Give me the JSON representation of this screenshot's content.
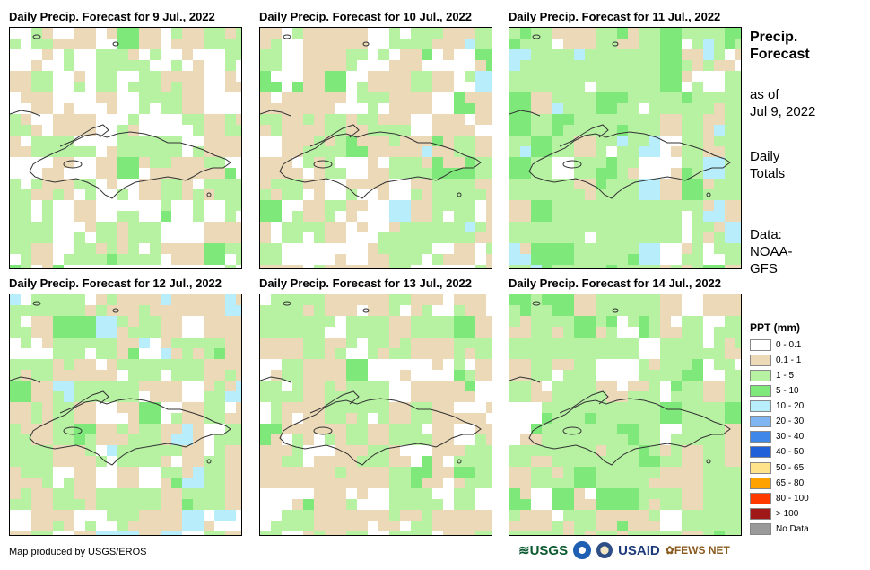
{
  "panels": [
    {
      "title": "Daily Precip. Forecast for 9 Jul., 2022",
      "seed": 3,
      "white": 0.38,
      "tan": 0.3,
      "green": 0.28,
      "dark": 0.04,
      "cyan": 0.0
    },
    {
      "title": "Daily Precip. Forecast for 10 Jul., 2022",
      "seed": 7,
      "white": 0.22,
      "tan": 0.36,
      "green": 0.34,
      "dark": 0.05,
      "cyan": 0.03
    },
    {
      "title": "Daily Precip. Forecast for 11 Jul., 2022",
      "seed": 11,
      "white": 0.08,
      "tan": 0.16,
      "green": 0.55,
      "dark": 0.12,
      "cyan": 0.09
    },
    {
      "title": "Daily Precip. Forecast for 12 Jul., 2022",
      "seed": 19,
      "white": 0.15,
      "tan": 0.38,
      "green": 0.35,
      "dark": 0.05,
      "cyan": 0.07
    },
    {
      "title": "Daily Precip. Forecast for 13 Jul., 2022",
      "seed": 23,
      "white": 0.25,
      "tan": 0.38,
      "green": 0.32,
      "dark": 0.05,
      "cyan": 0.0
    },
    {
      "title": "Daily Precip. Forecast for 14 Jul., 2022",
      "seed": 29,
      "white": 0.1,
      "tan": 0.28,
      "green": 0.55,
      "dark": 0.07,
      "cyan": 0.0
    }
  ],
  "side": {
    "title_line1": "Precip.",
    "title_line2": "Forecast",
    "asof_line1": "as of",
    "asof_line2": "Jul 9, 2022",
    "totals_line1": "Daily",
    "totals_line2": "Totals",
    "data_line1": "Data:",
    "data_line2": "NOAA-",
    "data_line3": "GFS"
  },
  "legend": {
    "title": "PPT (mm)",
    "items": [
      {
        "label": "0 - 0.1",
        "color": "#ffffff"
      },
      {
        "label": "0.1 - 1",
        "color": "#ecd9b8"
      },
      {
        "label": "1 - 5",
        "color": "#b7f2a3"
      },
      {
        "label": "5 - 10",
        "color": "#7ee87a"
      },
      {
        "label": "10 - 20",
        "color": "#b8eefc"
      },
      {
        "label": "20 - 30",
        "color": "#7fb6f2"
      },
      {
        "label": "30 - 40",
        "color": "#3f87e8"
      },
      {
        "label": "40 - 50",
        "color": "#2060d8"
      },
      {
        "label": "50 - 65",
        "color": "#ffe38a"
      },
      {
        "label": "65 - 80",
        "color": "#ffa200"
      },
      {
        "label": "80 - 100",
        "color": "#ff3a00"
      },
      {
        "label": "> 100",
        "color": "#a01818"
      },
      {
        "label": "No Data",
        "color": "#9a9a9a"
      }
    ]
  },
  "credit": "Map produced by USGS/EROS",
  "logos": {
    "usgs": "USGS",
    "usaid": "USAID",
    "fewsnet": "FEWS NET"
  }
}
